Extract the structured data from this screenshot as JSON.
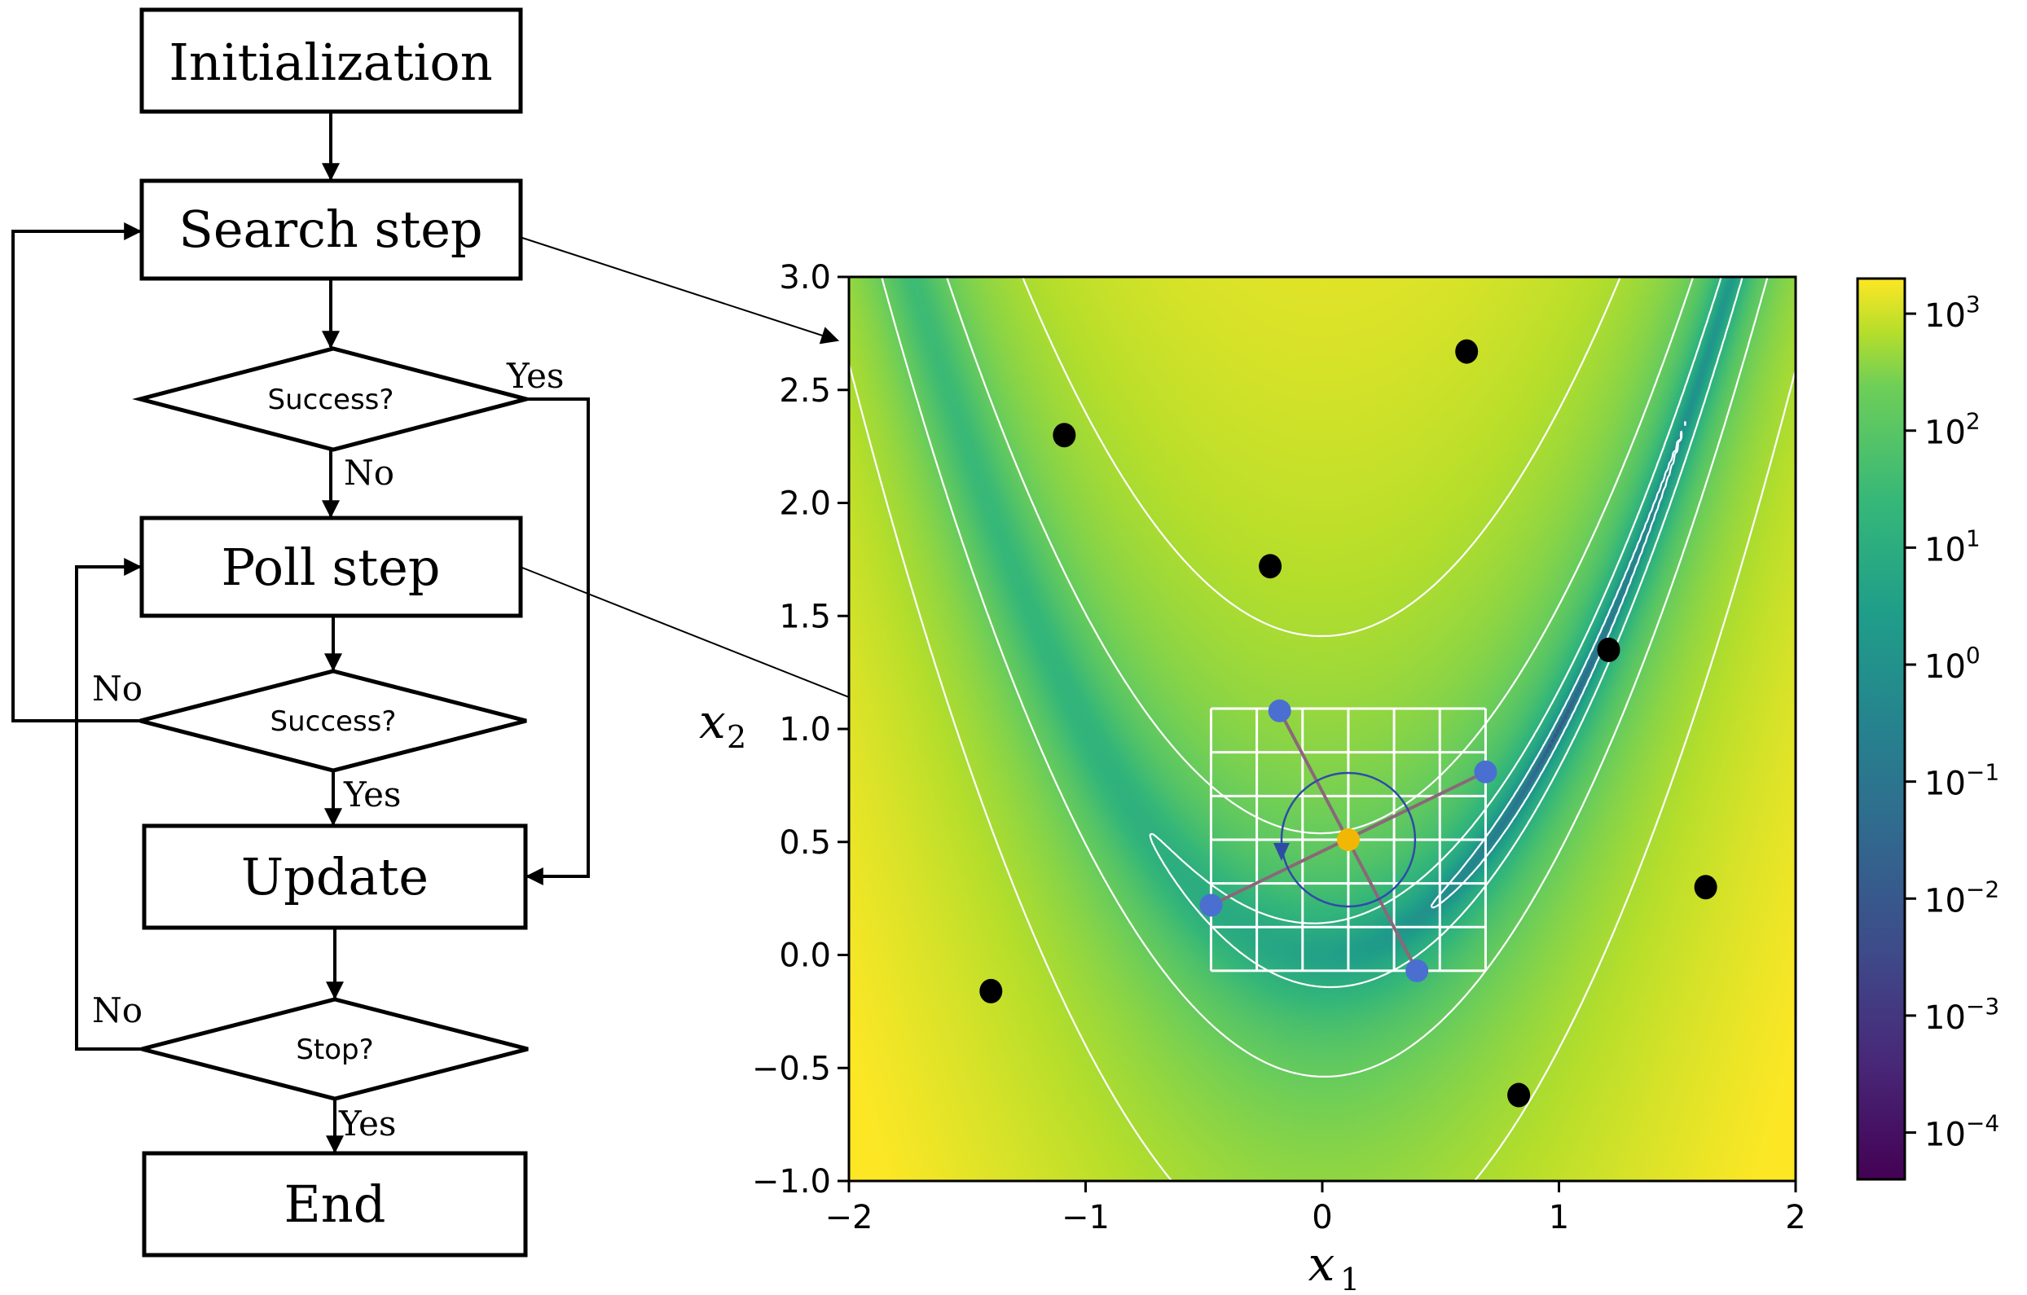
{
  "flowchart": {
    "boxes": {
      "init": "Initialization",
      "search": "Search step",
      "poll": "Poll step",
      "update": "Update",
      "end": "End"
    },
    "decisions": {
      "success1": "Success?",
      "success2": "Success?",
      "stop": "Stop?"
    },
    "edge_labels": {
      "d1_yes": "Yes",
      "d1_no": "No",
      "d2_no": "No",
      "d2_yes": "Yes",
      "d3_no": "No",
      "d3_yes": "Yes"
    }
  },
  "chart_data": {
    "type": "heatmap",
    "function": "Rosenbrock",
    "xlim": [
      -2,
      2
    ],
    "ylim": [
      -1,
      3
    ],
    "x_ticks": [
      "−2",
      "−1",
      "0",
      "1",
      "2"
    ],
    "y_ticks": [
      "−1.0",
      "−0.5",
      "0.0",
      "0.5",
      "1.0",
      "1.5",
      "2.0",
      "2.5",
      "3.0"
    ],
    "colorbar_ticks": [
      {
        "base": "10",
        "exp": "3"
      },
      {
        "base": "10",
        "exp": "2"
      },
      {
        "base": "10",
        "exp": "1"
      },
      {
        "base": "10",
        "exp": "0"
      },
      {
        "base": "10",
        "exp": "−1"
      },
      {
        "base": "10",
        "exp": "−2"
      },
      {
        "base": "10",
        "exp": "−3"
      },
      {
        "base": "10",
        "exp": "−4"
      }
    ],
    "colorbar_log_range": [
      -4.4,
      3.3
    ],
    "contour_levels": [
      0.3,
      3,
      30,
      200
    ],
    "colormap": [
      "#440154",
      "#3b528b",
      "#21918c",
      "#5ec962",
      "#fde725"
    ],
    "contour_color": "#ffffff",
    "search_points": [
      {
        "x": -1.09,
        "y": 2.3
      },
      {
        "x": 0.61,
        "y": 2.67
      },
      {
        "x": -0.22,
        "y": 1.72
      },
      {
        "x": 1.21,
        "y": 1.35
      },
      {
        "x": 1.62,
        "y": 0.3
      },
      {
        "x": -1.4,
        "y": -0.16
      },
      {
        "x": 0.83,
        "y": -0.62
      }
    ],
    "search_point_color": "#000000",
    "poll_center": {
      "x": 0.11,
      "y": 0.51
    },
    "poll_center_color": "#f2b705",
    "poll_points": [
      {
        "x": -0.18,
        "y": 1.08
      },
      {
        "x": 0.69,
        "y": 0.81
      },
      {
        "x": 0.4,
        "y": -0.07
      },
      {
        "x": -0.47,
        "y": 0.22
      }
    ],
    "poll_point_color": "#4a6fd0",
    "mesh": {
      "x0": -0.47,
      "x1": 0.69,
      "y0": -0.07,
      "y1": 1.09,
      "nx": 6,
      "ny": 6
    }
  }
}
